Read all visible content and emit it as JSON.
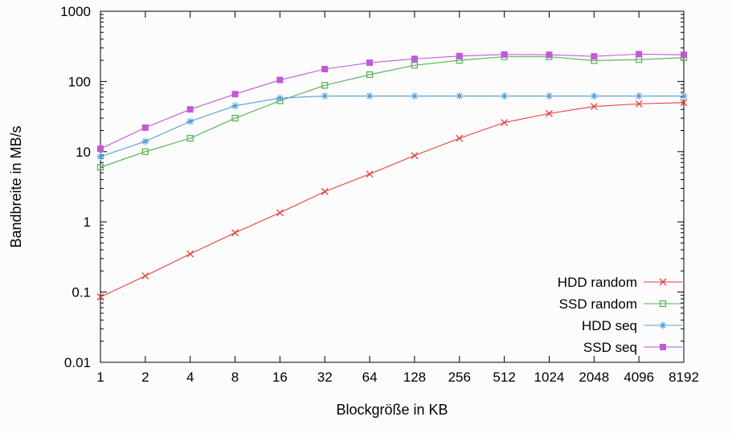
{
  "chart_data": {
    "type": "line",
    "title": "",
    "xlabel": "Blockgröße in KB",
    "ylabel": "Bandbreite in MB/s",
    "x_scale": "log2",
    "y_scale": "log10",
    "xlim_labels": [
      "1",
      "8192"
    ],
    "ylim": [
      0.01,
      1000
    ],
    "x_ticks": [
      "1",
      "2",
      "4",
      "8",
      "16",
      "32",
      "64",
      "128",
      "256",
      "512",
      "1024",
      "2048",
      "4096",
      "8192"
    ],
    "y_ticks": [
      "0.01",
      "0.1",
      "1",
      "10",
      "100",
      "1000"
    ],
    "categories": [
      1,
      2,
      4,
      8,
      16,
      32,
      64,
      128,
      256,
      512,
      1024,
      2048,
      4096,
      8192
    ],
    "grid": false,
    "legend_position": "bottom-right",
    "series": [
      {
        "name": "HDD random",
        "color": "#e2413c",
        "marker": "x",
        "values": [
          0.085,
          0.17,
          0.35,
          0.7,
          1.35,
          2.7,
          4.8,
          8.8,
          15.5,
          26,
          35,
          44,
          48,
          50
        ]
      },
      {
        "name": "SSD random",
        "color": "#50b050",
        "marker": "open-square",
        "values": [
          6,
          10,
          15.5,
          30,
          53,
          88,
          125,
          170,
          200,
          225,
          225,
          198,
          205,
          218
        ]
      },
      {
        "name": "HDD seq",
        "color": "#4f9fd9",
        "marker": "asterisk",
        "values": [
          8.5,
          14,
          27,
          45,
          58,
          62,
          62,
          62,
          62,
          62,
          62,
          62,
          62,
          62
        ]
      },
      {
        "name": "SSD seq",
        "color": "#c159d8",
        "marker": "filled-square",
        "values": [
          11,
          22,
          40,
          66,
          105,
          150,
          185,
          210,
          230,
          242,
          240,
          228,
          245,
          240
        ]
      }
    ]
  }
}
